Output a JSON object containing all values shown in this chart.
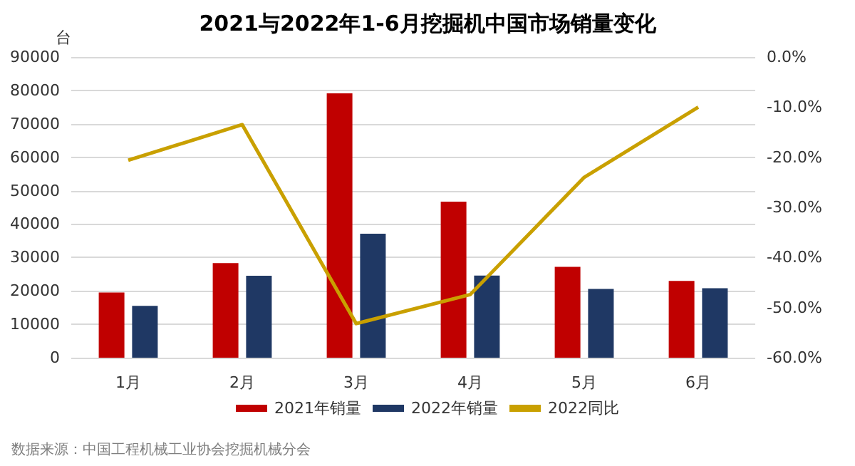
{
  "chart_data": {
    "type": "bar",
    "title": "2021与2022年1-6月挖掘机中国市场销量变化",
    "ylabel": "台",
    "annotations": [
      "数据来源：中国工程机械工业协会挖掘机械分会"
    ],
    "categories": [
      "1月",
      "2月",
      "3月",
      "4月",
      "5月",
      "6月"
    ],
    "series": [
      {
        "name": "2021年销量",
        "color": "#c00000",
        "values": [
          19500,
          28300,
          79100,
          46700,
          27200,
          23000
        ]
      },
      {
        "name": "2022年销量",
        "color": "#1f3864",
        "values": [
          15500,
          24500,
          37100,
          24600,
          20600,
          20800
        ]
      },
      {
        "name": "2022同比",
        "type": "line",
        "axis": "y2",
        "color": "#c9a000",
        "values": [
          -20.6,
          -13.5,
          -53.2,
          -47.4,
          -24.0,
          -10.0
        ]
      }
    ],
    "ylim": [
      0,
      90000
    ],
    "yticks": [
      0,
      10000,
      20000,
      30000,
      40000,
      50000,
      60000,
      70000,
      80000,
      90000
    ],
    "y2lim": [
      -60,
      0
    ],
    "y2ticks": [
      {
        "value": -60,
        "label": "-60.0%"
      },
      {
        "value": -50,
        "label": "-50.0%"
      },
      {
        "value": -40,
        "label": "-40.0%"
      },
      {
        "value": -30,
        "label": "-30.0%"
      },
      {
        "value": -20,
        "label": "-20.0%"
      },
      {
        "value": -10,
        "label": "-10.0%"
      },
      {
        "value": 0,
        "label": "0.0%"
      }
    ],
    "grid": "y",
    "legend": "bottom",
    "marker": "none"
  }
}
